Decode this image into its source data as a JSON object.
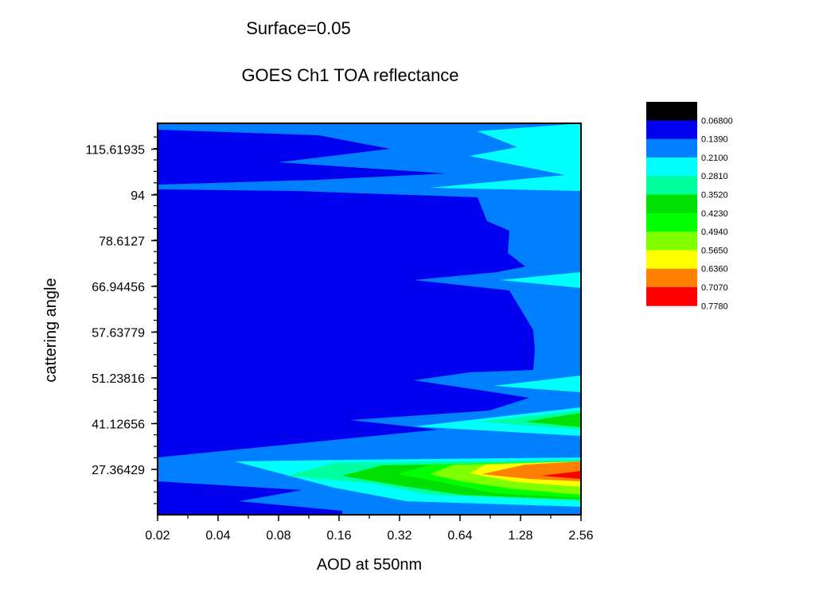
{
  "chart_data": {
    "type": "contour",
    "title": "GOES Ch1 TOA reflectance",
    "subtitle": "Surface=0.05",
    "xlabel": "AOD at 550nm",
    "ylabel": "cattering angle",
    "x_scale": "log",
    "x_ticks": [
      "0.02",
      "0.04",
      "0.08",
      "0.16",
      "0.32",
      "0.64",
      "1.28",
      "2.56"
    ],
    "y_ticks": [
      "27.36429",
      "41.12656",
      "51.23816",
      "57.63779",
      "66.94456",
      "78.6127",
      "94",
      "115.61935"
    ],
    "legend": {
      "levels": [
        "0.06800",
        "0.1390",
        "0.2100",
        "0.2810",
        "0.3520",
        "0.4230",
        "0.4940",
        "0.5650",
        "0.6360",
        "0.7070",
        "0.7780"
      ],
      "colors": [
        "#000000",
        "#0000ee",
        "#0080ff",
        "#00ffff",
        "#00ff9e",
        "#00e000",
        "#00ff00",
        "#80ff00",
        "#ffff00",
        "#ff8000",
        "#ff0000"
      ]
    }
  }
}
